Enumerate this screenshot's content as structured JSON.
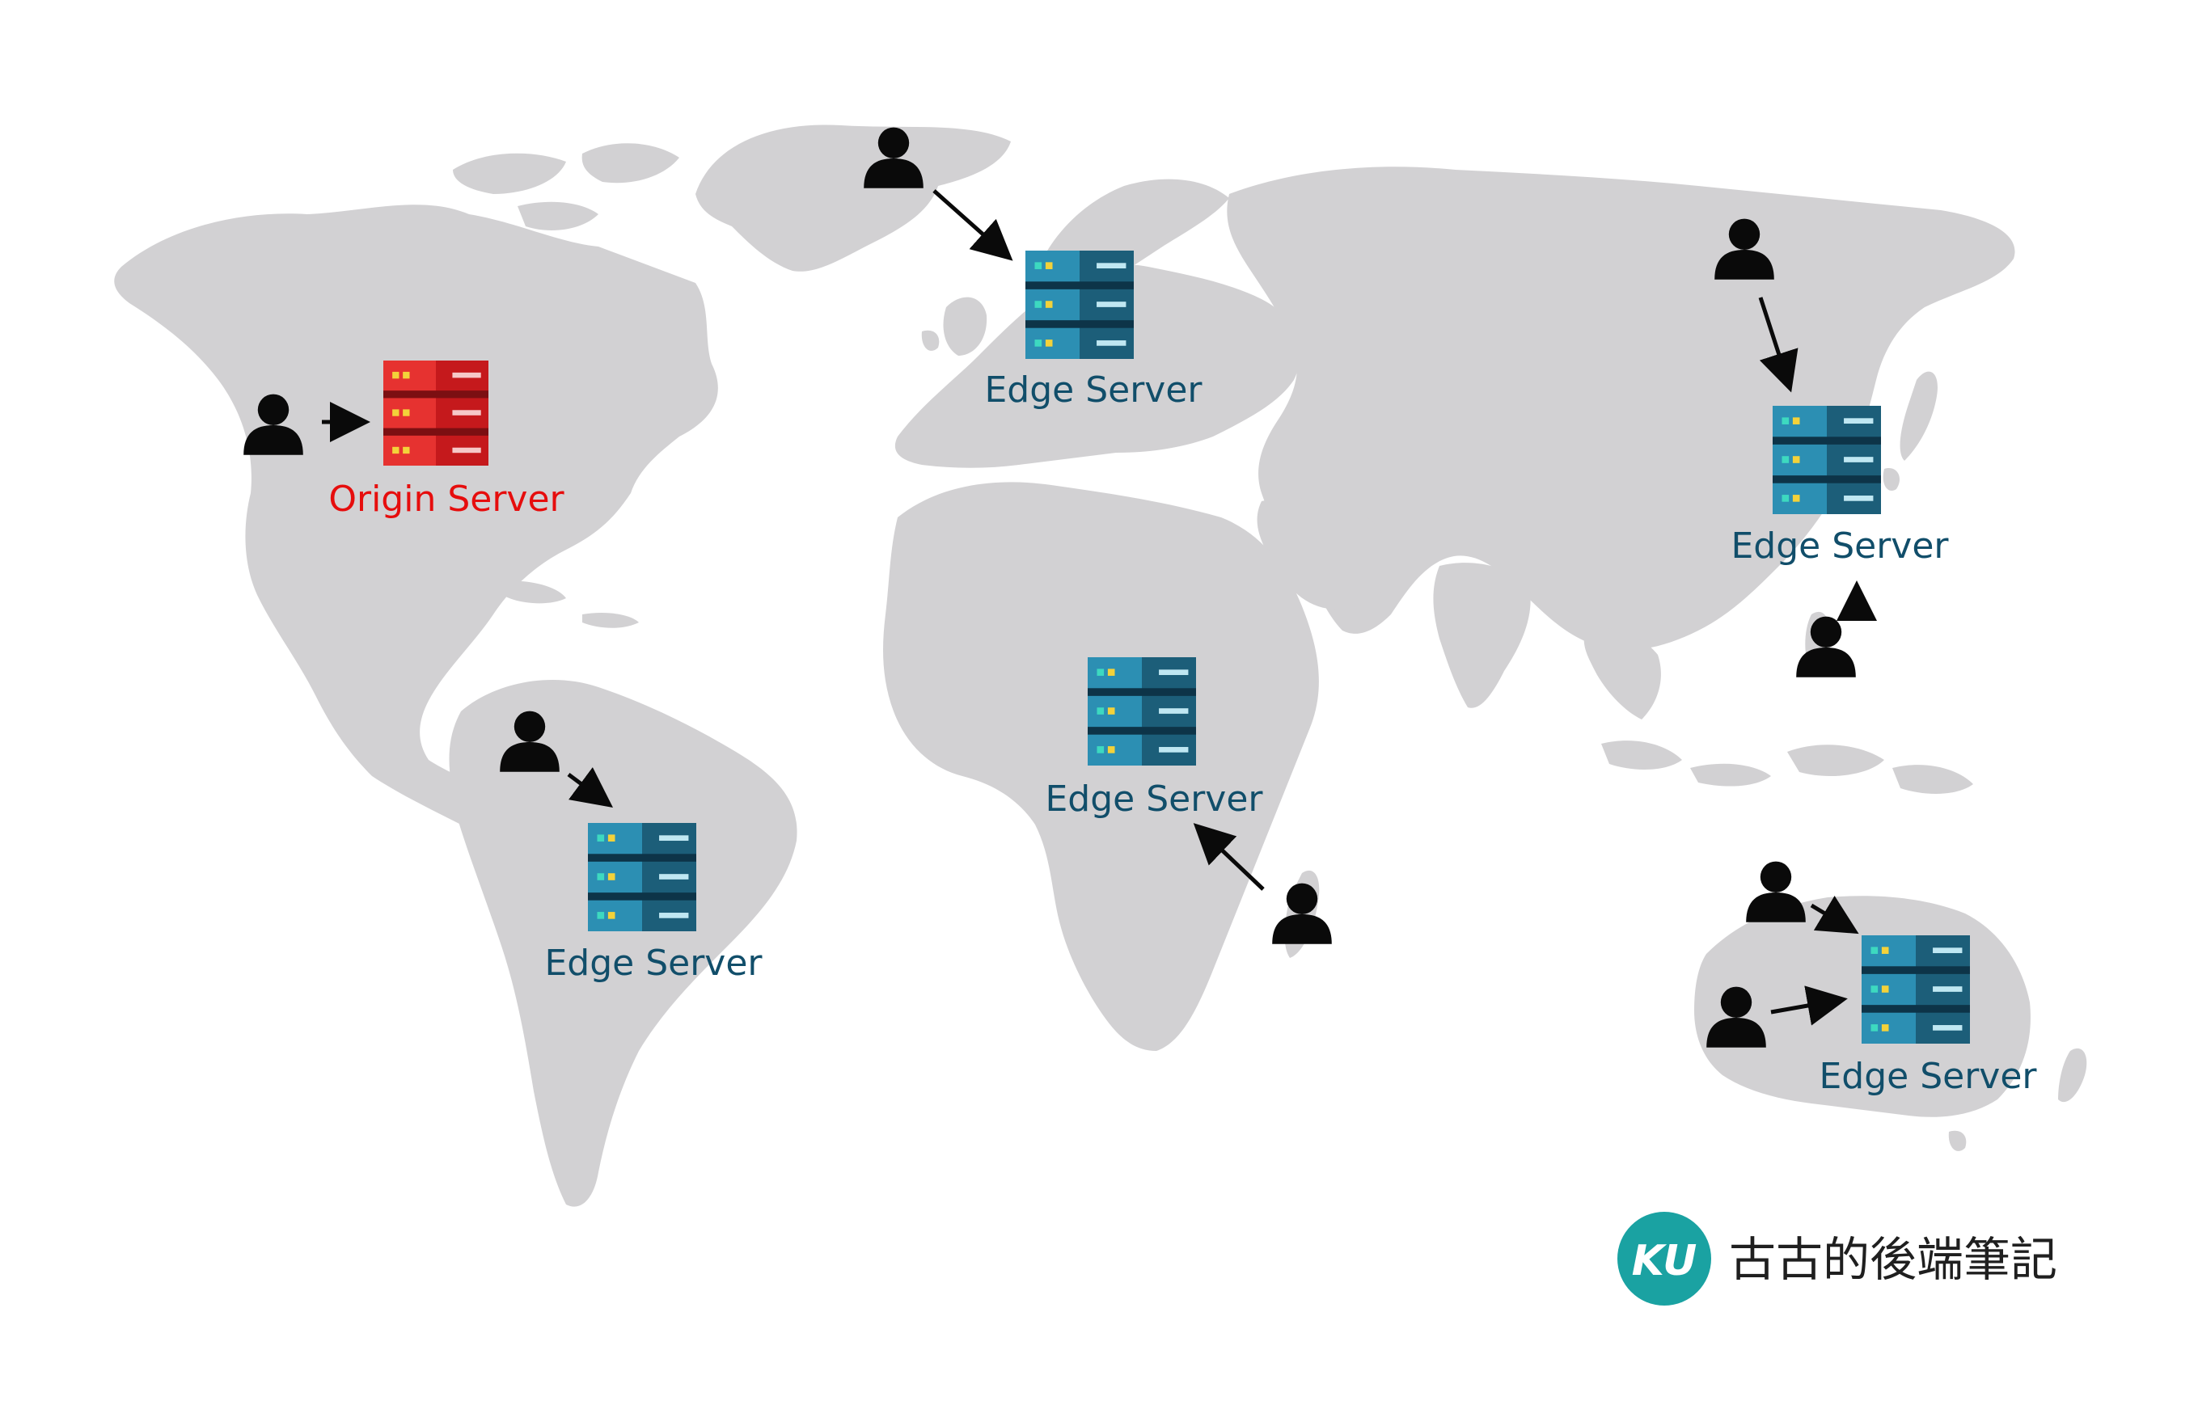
{
  "colors": {
    "land": "#d2d1d3",
    "background": "#ffffff",
    "user_icon": "#0a0a0a",
    "arrow": "#0a0a0a",
    "edge_server": "#1c5e79",
    "edge_server_light": "#2c8fb3",
    "edge_server_dark": "#0d3448",
    "origin_server": "#c5191c",
    "origin_server_light": "#e63230",
    "origin_server_dark": "#7c0f12",
    "led_yellow": "#f3d23a",
    "led_green": "#3dd9c0",
    "edge_label": "#114e6a",
    "origin_label": "#e60d0d",
    "brand_circle": "#1aa2a2",
    "brand_text": "#1f1f1f"
  },
  "origin": {
    "label": "Origin Server"
  },
  "edges": {
    "europe": "Edge Server",
    "east_asia": "Edge Server",
    "africa": "Edge Server",
    "south_america": "Edge Server",
    "australia": "Edge Server"
  },
  "brand": {
    "mark": "KU",
    "name": "古古的後端筆記"
  },
  "icons": {
    "user": "user-icon",
    "server": "server-icon",
    "arrow": "arrow-icon"
  }
}
